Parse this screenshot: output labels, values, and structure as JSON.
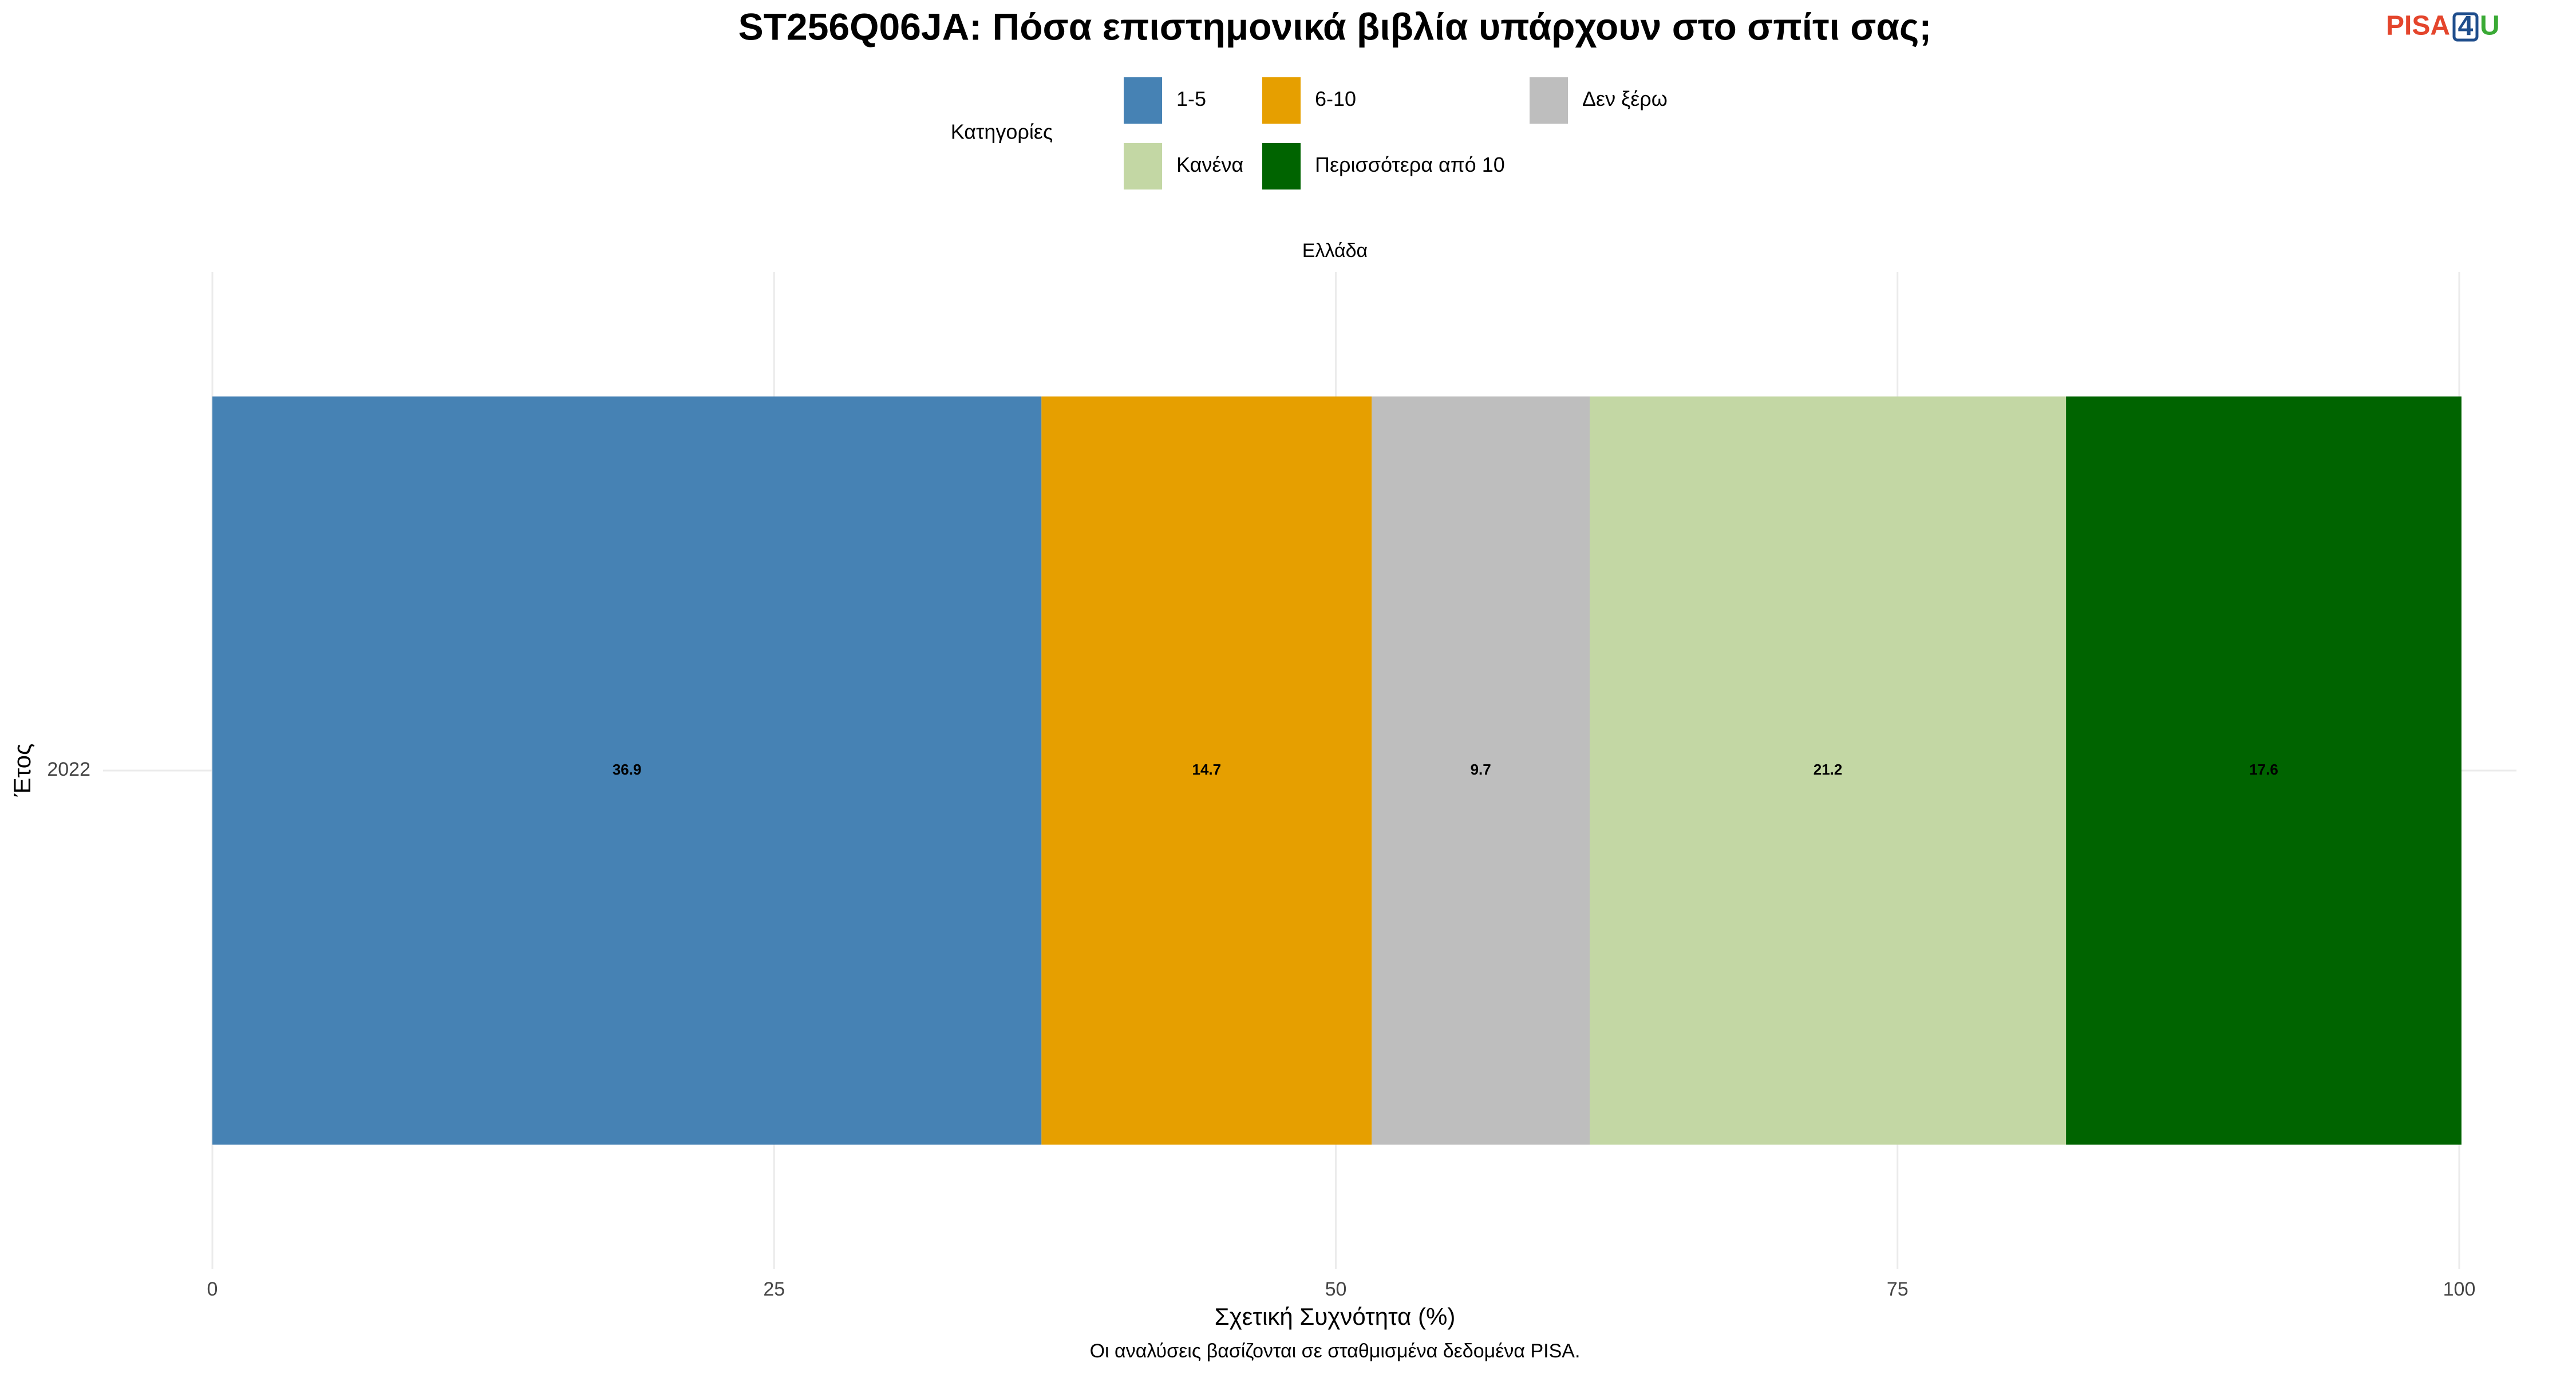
{
  "chart_data": {
    "type": "stacked_bar_horizontal",
    "title": "ST256Q06JA: Πόσα επιστημονικά βιβλία υπάρχουν στο σπίτι σας;",
    "legend_title": "Κατηγορίες",
    "facet_label": "Ελλάδα",
    "categories": [
      "2022"
    ],
    "series": [
      {
        "name": "1-5",
        "color": "#4682b4",
        "values": [
          36.9
        ]
      },
      {
        "name": "6-10",
        "color": "#e69f00",
        "values": [
          14.7
        ]
      },
      {
        "name": "Δεν ξέρω",
        "color": "#bebebe",
        "values": [
          9.7
        ]
      },
      {
        "name": "Κανένα",
        "color": "#c3d7a4",
        "values": [
          21.2
        ]
      },
      {
        "name": "Περισσότερα από 10",
        "color": "#006400",
        "values": [
          17.6
        ]
      }
    ],
    "xlim": [
      0,
      100
    ],
    "xticks": [
      0,
      25,
      50,
      75,
      100
    ],
    "xlabel": "Σχετική Συχνότητα (%)",
    "ylabel": "Έτος",
    "caption": "Οι αναλύσεις βασίζονται σε σταθμισμένα δεδομένα PISA.",
    "grid": true
  },
  "logo": {
    "parts": [
      "PISA",
      "4",
      "U"
    ]
  }
}
